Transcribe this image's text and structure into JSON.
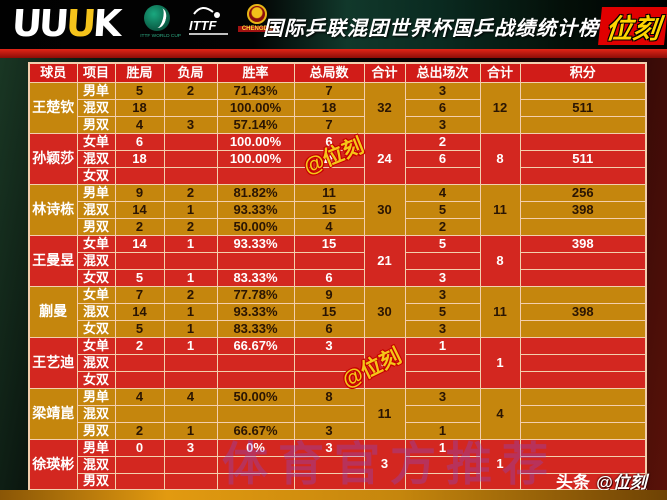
{
  "header": {
    "brand_left": "UU",
    "brand_mid": "U",
    "brand_right": "K",
    "ittf_worldcup_label": "ITTF WORLD CUP",
    "ittf_label": "ITTF",
    "chengdu_label": "CHENGDU",
    "title": "国际乒联混团世界杯国乒战绩统计榜",
    "badge": "位刻"
  },
  "chart_data": {
    "type": "table",
    "title": "国际乒联混团世界杯国乒战绩统计榜",
    "columns": [
      "球员",
      "项目",
      "胜局",
      "负局",
      "胜率",
      "总局数",
      "合计",
      "总出场次",
      "合计",
      "积分"
    ],
    "players": [
      {
        "name": "王楚钦",
        "theme": "gold",
        "total_games": "32",
        "total_appearances": "12",
        "rows": [
          {
            "event": "男单",
            "wins": "5",
            "losses": "2",
            "win_rate": "71.43%",
            "games": "7",
            "appearances": "3",
            "points": ""
          },
          {
            "event": "混双",
            "wins": "18",
            "losses": "",
            "win_rate": "100.00%",
            "games": "18",
            "appearances": "6",
            "points": "511"
          },
          {
            "event": "男双",
            "wins": "4",
            "losses": "3",
            "win_rate": "57.14%",
            "games": "7",
            "appearances": "3",
            "points": ""
          }
        ]
      },
      {
        "name": "孙颖莎",
        "theme": "red",
        "total_games": "24",
        "total_appearances": "8",
        "rows": [
          {
            "event": "女单",
            "wins": "6",
            "losses": "",
            "win_rate": "100.00%",
            "games": "6",
            "appearances": "2",
            "points": ""
          },
          {
            "event": "混双",
            "wins": "18",
            "losses": "",
            "win_rate": "100.00%",
            "games": "18",
            "appearances": "6",
            "points": "511"
          },
          {
            "event": "女双",
            "wins": "",
            "losses": "",
            "win_rate": "",
            "games": "",
            "appearances": "",
            "points": ""
          }
        ]
      },
      {
        "name": "林诗栋",
        "theme": "gold",
        "total_games": "30",
        "total_appearances": "11",
        "rows": [
          {
            "event": "男单",
            "wins": "9",
            "losses": "2",
            "win_rate": "81.82%",
            "games": "11",
            "appearances": "4",
            "points": "256"
          },
          {
            "event": "混双",
            "wins": "14",
            "losses": "1",
            "win_rate": "93.33%",
            "games": "15",
            "appearances": "5",
            "points": "398"
          },
          {
            "event": "男双",
            "wins": "2",
            "losses": "2",
            "win_rate": "50.00%",
            "games": "4",
            "appearances": "2",
            "points": ""
          }
        ]
      },
      {
        "name": "王曼昱",
        "theme": "red",
        "total_games": "21",
        "total_appearances": "8",
        "rows": [
          {
            "event": "女单",
            "wins": "14",
            "losses": "1",
            "win_rate": "93.33%",
            "games": "15",
            "appearances": "5",
            "points": "398"
          },
          {
            "event": "混双",
            "wins": "",
            "losses": "",
            "win_rate": "",
            "games": "",
            "appearances": "",
            "points": ""
          },
          {
            "event": "女双",
            "wins": "5",
            "losses": "1",
            "win_rate": "83.33%",
            "games": "6",
            "appearances": "3",
            "points": ""
          }
        ]
      },
      {
        "name": "蒯曼",
        "theme": "gold",
        "total_games": "30",
        "total_appearances": "11",
        "rows": [
          {
            "event": "女单",
            "wins": "7",
            "losses": "2",
            "win_rate": "77.78%",
            "games": "9",
            "appearances": "3",
            "points": ""
          },
          {
            "event": "混双",
            "wins": "14",
            "losses": "1",
            "win_rate": "93.33%",
            "games": "15",
            "appearances": "5",
            "points": "398"
          },
          {
            "event": "女双",
            "wins": "5",
            "losses": "1",
            "win_rate": "83.33%",
            "games": "6",
            "appearances": "3",
            "points": ""
          }
        ]
      },
      {
        "name": "王艺迪",
        "theme": "red",
        "total_games": "3",
        "total_appearances": "1",
        "rows": [
          {
            "event": "女单",
            "wins": "2",
            "losses": "1",
            "win_rate": "66.67%",
            "games": "3",
            "appearances": "1",
            "points": ""
          },
          {
            "event": "混双",
            "wins": "",
            "losses": "",
            "win_rate": "",
            "games": "",
            "appearances": "",
            "points": ""
          },
          {
            "event": "女双",
            "wins": "",
            "losses": "",
            "win_rate": "",
            "games": "",
            "appearances": "",
            "points": ""
          }
        ]
      },
      {
        "name": "梁靖崑",
        "theme": "gold",
        "total_games": "11",
        "total_appearances": "4",
        "rows": [
          {
            "event": "男单",
            "wins": "4",
            "losses": "4",
            "win_rate": "50.00%",
            "games": "8",
            "appearances": "3",
            "points": ""
          },
          {
            "event": "混双",
            "wins": "",
            "losses": "",
            "win_rate": "",
            "games": "",
            "appearances": "",
            "points": ""
          },
          {
            "event": "男双",
            "wins": "2",
            "losses": "1",
            "win_rate": "66.67%",
            "games": "3",
            "appearances": "1",
            "points": ""
          }
        ]
      },
      {
        "name": "徐瑛彬",
        "theme": "red",
        "total_games": "3",
        "total_appearances": "1",
        "rows": [
          {
            "event": "男单",
            "wins": "0",
            "losses": "3",
            "win_rate": "0%",
            "games": "3",
            "appearances": "1",
            "points": ""
          },
          {
            "event": "混双",
            "wins": "",
            "losses": "",
            "win_rate": "",
            "games": "",
            "appearances": "",
            "points": ""
          },
          {
            "event": "男双",
            "wins": "",
            "losses": "",
            "win_rate": "",
            "games": "",
            "appearances": "",
            "points": ""
          }
        ]
      }
    ]
  },
  "watermarks": {
    "stamp": "@位刻",
    "big_text": "体育官方推荐",
    "credit_source": "头条",
    "credit_handle": "@位刻"
  },
  "colors": {
    "gold_row": "#c5860d",
    "red_row": "#d32720",
    "header_red": "#d11c18",
    "badge_red": "#e00000",
    "badge_yellow": "#ffd400"
  }
}
